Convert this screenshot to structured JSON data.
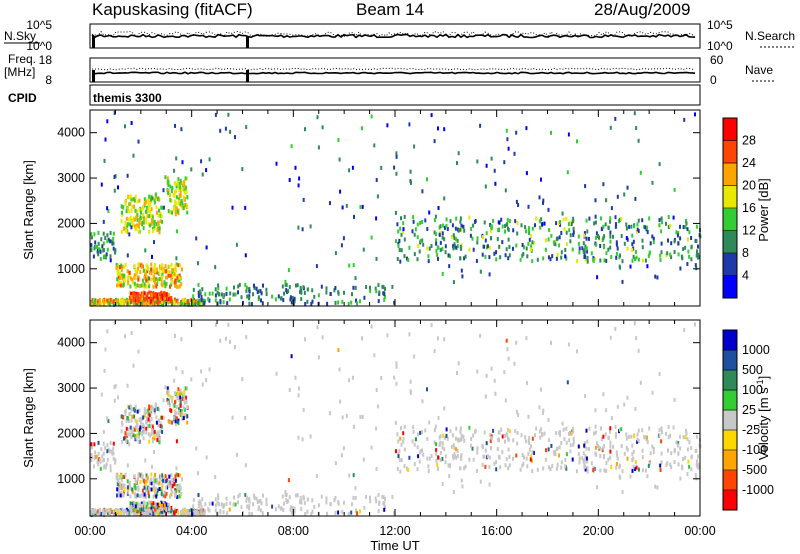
{
  "header": {
    "radar": "Kapuskasing (fitACF)",
    "beam": "Beam 14",
    "date": "28/Aug/2009"
  },
  "top_panels": {
    "nsky_label": "N.Sky",
    "nsky_ticks": [
      "10^5",
      "10^0"
    ],
    "nsearch_label": "N.Search",
    "nsearch_ticks": [
      "10^5",
      "10^0"
    ],
    "freq_label": "Freq.",
    "freq_unit": "[MHz]",
    "freq_ticks": [
      "18",
      "8"
    ],
    "nave_label": "Nave",
    "nave_ticks": [
      "60",
      "0"
    ],
    "cpid_label": "CPID",
    "cpid_value": "themis 3300"
  },
  "chart_data": [
    {
      "type": "heatmap",
      "panel": "power",
      "ylabel": "Slant Range [km]",
      "ylim": [
        180,
        4500
      ],
      "yticks": [
        1000,
        2000,
        3000,
        4000
      ],
      "xlim_hours": [
        0,
        24
      ],
      "xtick_labels": [
        "00:00",
        "04:00",
        "08:00",
        "12:00",
        "16:00",
        "20:00",
        "00:00"
      ],
      "colorbar": {
        "label": "Power [dB]",
        "ticks": [
          "4",
          "8",
          "12",
          "16",
          "20",
          "24",
          "28"
        ],
        "colors": [
          "#0000ff",
          "#1e3aa8",
          "#2e8b57",
          "#32cd32",
          "#e8e800",
          "#ffa500",
          "#ff4500",
          "#ff0000"
        ]
      },
      "echo_regions": [
        {
          "t": [
            0.0,
            4.2
          ],
          "r": [
            200,
            320
          ],
          "note": "near-range ground band"
        },
        {
          "t": [
            1.5,
            3.2
          ],
          "r": [
            300,
            500
          ],
          "level": "high"
        },
        {
          "t": [
            1.0,
            3.5
          ],
          "r": [
            600,
            1100
          ],
          "level": "medium-high"
        },
        {
          "t": [
            1.0,
            2.8
          ],
          "r": [
            1800,
            2600
          ],
          "level": "medium"
        },
        {
          "t": [
            3.0,
            3.8
          ],
          "r": [
            2200,
            3000
          ],
          "level": "medium"
        },
        {
          "t": [
            0.0,
            1.0
          ],
          "r": [
            1200,
            1800
          ],
          "level": "low"
        },
        {
          "t": [
            4.0,
            12.0
          ],
          "r": [
            200,
            700
          ],
          "level": "low"
        },
        {
          "t": [
            12.0,
            24.0
          ],
          "r": [
            1100,
            2200
          ],
          "level": "low-medium"
        }
      ]
    },
    {
      "type": "heatmap",
      "panel": "velocity",
      "ylabel": "Slant Range [km]",
      "ylim": [
        180,
        4500
      ],
      "yticks": [
        1000,
        2000,
        3000,
        4000
      ],
      "xlim_hours": [
        0,
        24
      ],
      "xtick_labels": [
        "00:00",
        "04:00",
        "08:00",
        "12:00",
        "16:00",
        "20:00",
        "00:00"
      ],
      "xlabel": "Time UT",
      "colorbar": {
        "label": "Velocity [m s",
        "label_sup": "-1",
        "label_close": "]",
        "ticks": [
          "1000",
          "500",
          "100",
          "25",
          "-25",
          "-100",
          "-500",
          "-1000"
        ],
        "colors": [
          "#0000cd",
          "#1e50a0",
          "#2e8b57",
          "#32cd32",
          "#c8c8c8",
          "#ffd700",
          "#ffa500",
          "#ff4500",
          "#ff0000"
        ]
      }
    }
  ]
}
